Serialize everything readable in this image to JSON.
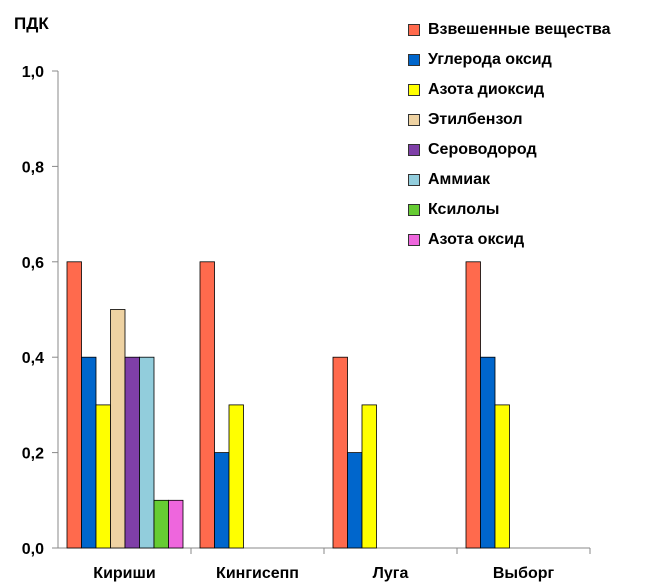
{
  "chart_data": {
    "type": "bar",
    "ylabel": "ПДК",
    "ylim": [
      0,
      1.0
    ],
    "yticks": [
      "0,0",
      "0,2",
      "0,4",
      "0,6",
      "0,8",
      "1,0"
    ],
    "categories": [
      "Кириши",
      "Кингисепп",
      "Луга",
      "Выборг"
    ],
    "series": [
      {
        "name": "Взвешенные вещества",
        "color": "#FF6A4D",
        "values": [
          0.6,
          0.6,
          0.4,
          0.6
        ]
      },
      {
        "name": "Углерода оксид",
        "color": "#0066CC",
        "values": [
          0.4,
          0.2,
          0.2,
          0.4
        ]
      },
      {
        "name": "Азота диоксид",
        "color": "#FFFF00",
        "values": [
          0.3,
          0.3,
          0.3,
          0.3
        ]
      },
      {
        "name": "Этилбензол",
        "color": "#EED2A2",
        "values": [
          0.5,
          null,
          null,
          null
        ]
      },
      {
        "name": "Сероводород",
        "color": "#7F3FA8",
        "values": [
          0.4,
          null,
          null,
          null
        ]
      },
      {
        "name": "Аммиак",
        "color": "#92CDDC",
        "values": [
          0.4,
          null,
          null,
          null
        ]
      },
      {
        "name": "Ксилолы",
        "color": "#66CC33",
        "values": [
          0.1,
          null,
          null,
          null
        ]
      },
      {
        "name": "Азота оксид",
        "color": "#EE66DD",
        "values": [
          0.1,
          null,
          null,
          null
        ]
      }
    ],
    "legend_position": "top-right",
    "grid": false
  }
}
